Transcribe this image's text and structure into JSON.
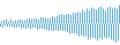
{
  "chart_data": {
    "type": "bar",
    "values": [
      -3,
      2,
      -4,
      3,
      -2,
      4,
      -3,
      2,
      -3,
      4,
      -3,
      2,
      -4,
      3,
      -4,
      3,
      -3,
      4,
      -5,
      3,
      -4,
      3,
      -5,
      4,
      -4,
      5,
      -5,
      4,
      -4,
      5,
      -4,
      5,
      -6,
      4,
      -5,
      6,
      -5,
      6,
      -5,
      5,
      -6,
      5,
      -7,
      5,
      -6,
      7,
      -7,
      6,
      -6,
      7,
      -7,
      8,
      -6,
      9,
      -7,
      8,
      -7,
      9,
      -8,
      9,
      -10,
      8,
      -9,
      10,
      -9,
      10,
      -10,
      11,
      -12,
      10,
      -11,
      13,
      -12,
      11,
      -12,
      14,
      -15,
      12,
      -14,
      15,
      -13,
      14,
      -14,
      13,
      -16,
      15,
      -14,
      16,
      -15,
      14,
      -13,
      12,
      -14,
      15,
      -13,
      16,
      -15,
      14,
      -16,
      15,
      -18,
      14,
      -16,
      17
    ],
    "color": "#5badd4",
    "ylim": [
      -20,
      22
    ],
    "tick_labels": false,
    "grid": false
  }
}
